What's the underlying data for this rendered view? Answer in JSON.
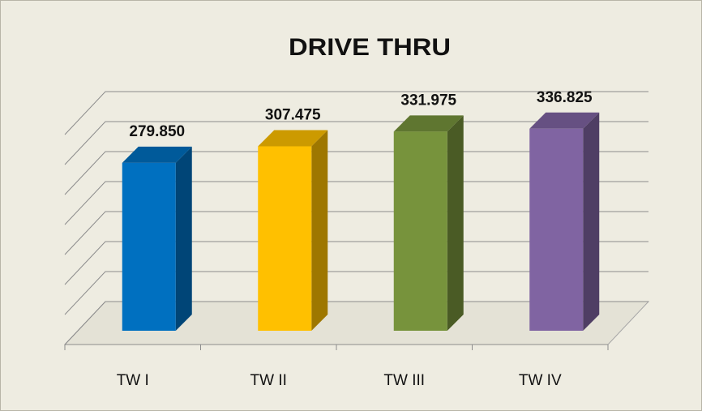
{
  "chart_data": {
    "type": "bar3d",
    "title": "DRIVE THRU",
    "categories": [
      "TW I",
      "TW II",
      "TW III",
      "TW IV"
    ],
    "values": [
      279.85,
      307.475,
      331.975,
      336.825
    ],
    "value_labels": [
      "279.850",
      "307.475",
      "331.975",
      "336.825"
    ],
    "colors": [
      "#0070c0",
      "#ffc000",
      "#77933c",
      "#8064a2"
    ],
    "ylim": [
      0,
      350
    ],
    "yticks": [
      0,
      50,
      100,
      150,
      200,
      250,
      300,
      350
    ],
    "grid": true
  }
}
